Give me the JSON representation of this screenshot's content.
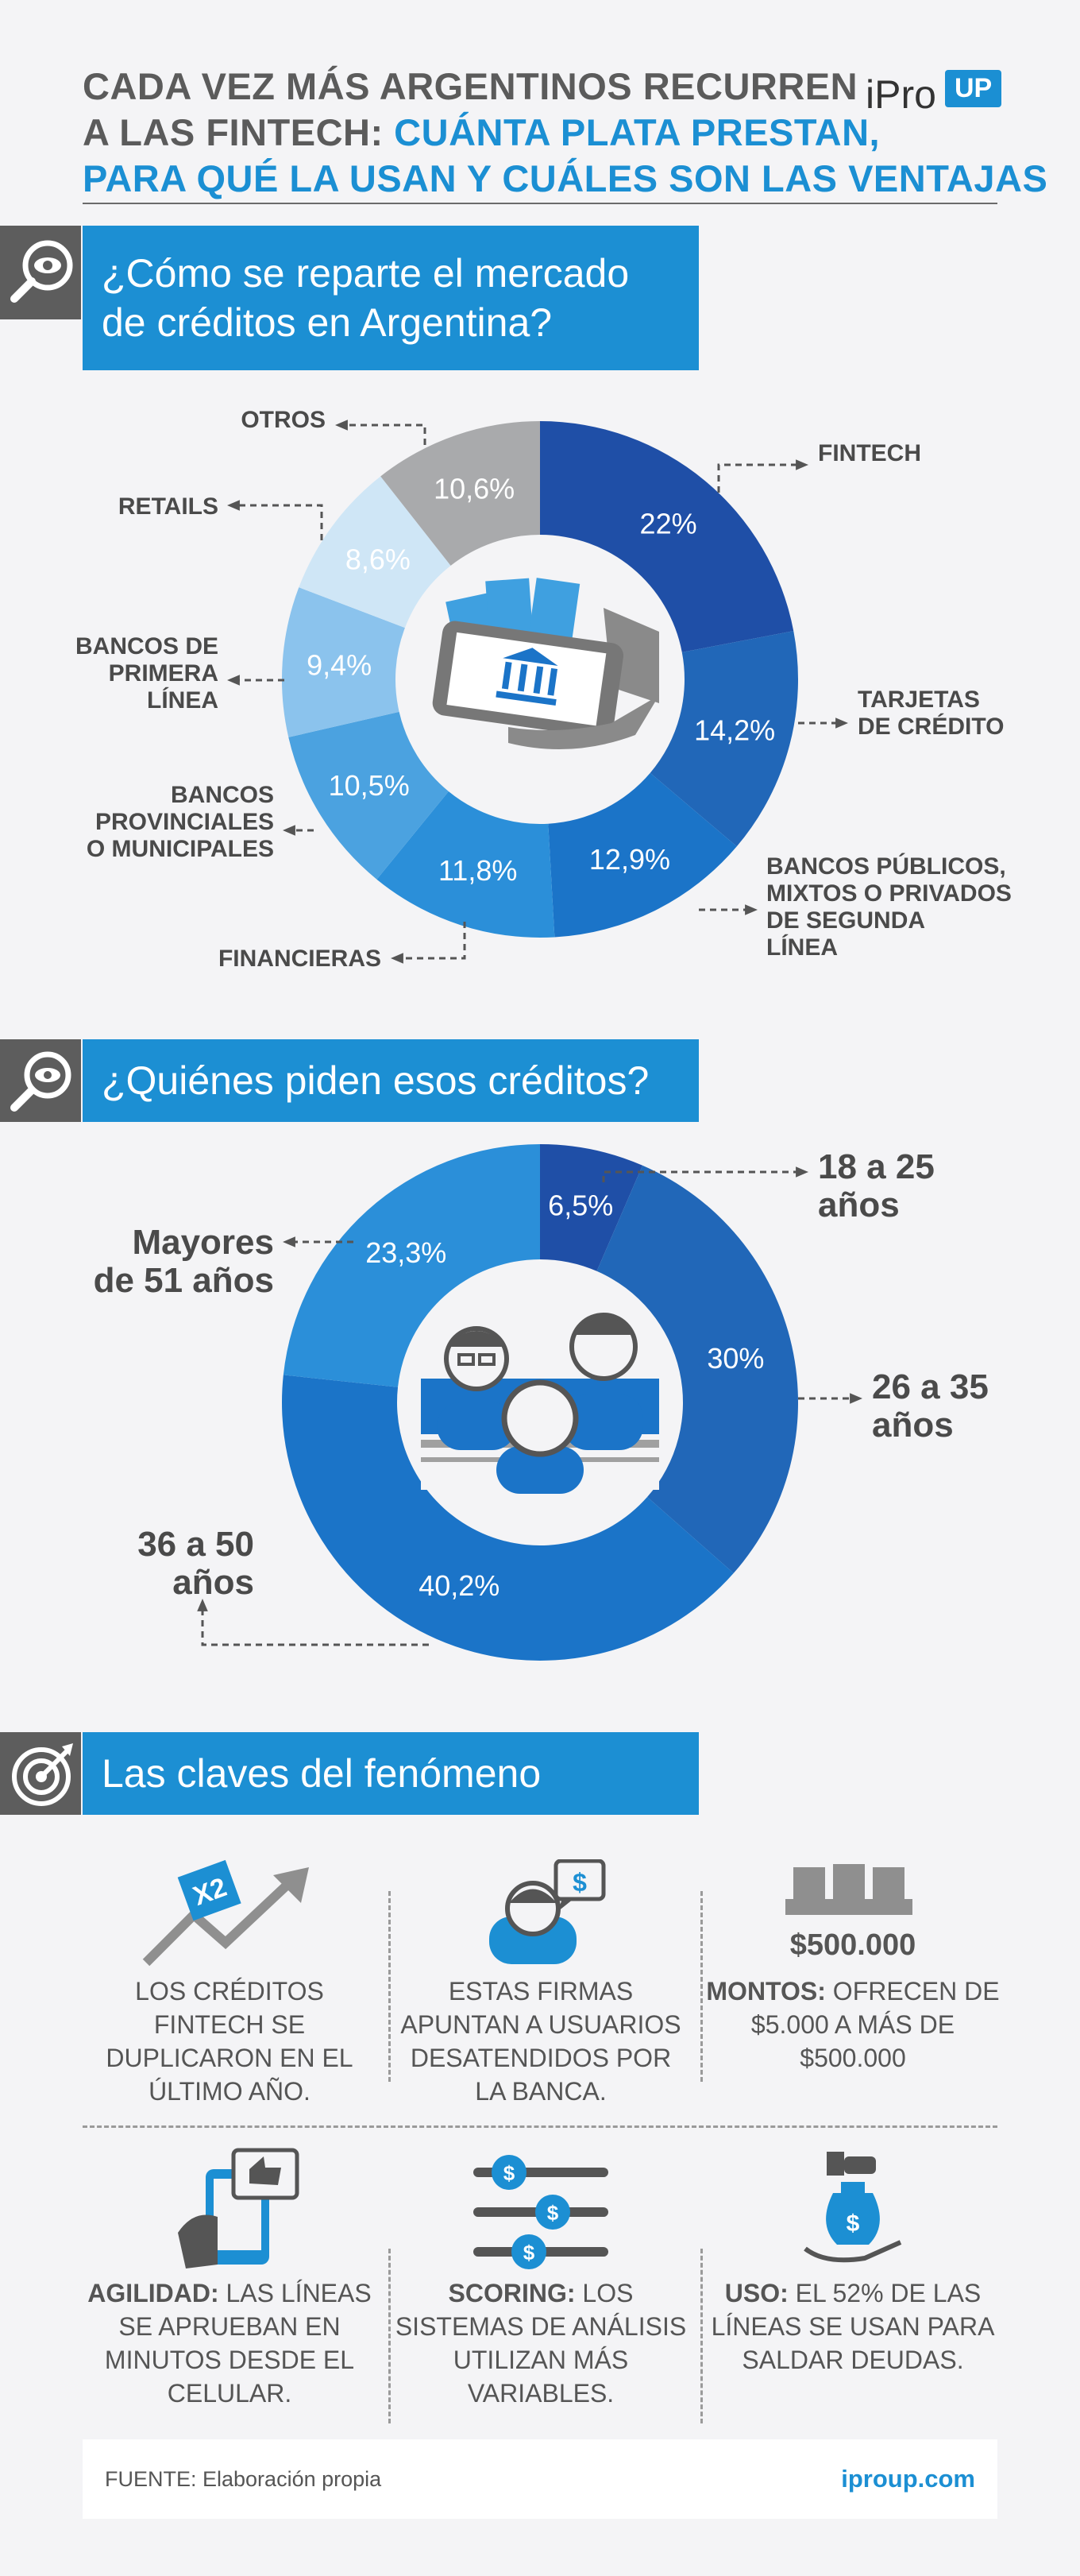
{
  "header": {
    "title_line1": "CADA VEZ MÁS ARGENTINOS RECURREN",
    "title_line2_gray": "A LAS FINTECH:",
    "title_line2_blue": " CUÁNTA PLATA PRESTAN,",
    "title_line3_blue": "PARA QUÉ LA USAN Y CUÁLES SON LAS VENTAJAS",
    "logo_text": "iPro",
    "logo_badge": "UP"
  },
  "section1": {
    "title_line1": "¿Cómo se reparte el mercado",
    "title_line2": "de créditos en Argentina?",
    "icon": "eye-magnifier-icon"
  },
  "section2": {
    "title": "¿Quiénes piden esos créditos?",
    "icon": "eye-magnifier-icon"
  },
  "section3": {
    "title": "Las claves del fenómeno",
    "icon": "target-icon"
  },
  "chart_data": [
    {
      "type": "pie",
      "title": "¿Cómo se reparte el mercado de créditos en Argentina?",
      "categories": [
        "FINTECH",
        "TARJETAS DE CRÉDITO",
        "BANCOS PÚBLICOS, MIXTOS O PRIVADOS DE SEGUNDA LÍNEA",
        "FINANCIERAS",
        "BANCOS PROVINCIALES O MUNICIPALES",
        "BANCOS DE PRIMERA LÍNEA",
        "RETAILS",
        "OTROS"
      ],
      "values": [
        22,
        14.2,
        12.9,
        11.8,
        10.5,
        9.4,
        8.6,
        10.6
      ],
      "value_labels": [
        "22%",
        "14,2%",
        "12,9%",
        "11,8%",
        "10,5%",
        "9,4%",
        "8,6%",
        "10,6%"
      ],
      "colors": [
        "#1f4fa7",
        "#2167b8",
        "#1b74c8",
        "#2b8fd9",
        "#4ba2e0",
        "#8bc3ed",
        "#cfe6f6",
        "#a9aaac"
      ],
      "label_lines": [
        [
          "FINTECH"
        ],
        [
          "TARJETAS",
          "DE CRÉDITO"
        ],
        [
          "BANCOS PÚBLICOS,",
          "MIXTOS O PRIVADOS",
          "DE SEGUNDA",
          "LÍNEA"
        ],
        [
          "FINANCIERAS"
        ],
        [
          "BANCOS",
          "PROVINCIALES",
          "O MUNICIPALES"
        ],
        [
          "BANCOS DE",
          "PRIMERA",
          "LÍNEA"
        ],
        [
          "RETAILS"
        ],
        [
          "OTROS"
        ]
      ]
    },
    {
      "type": "pie",
      "title": "¿Quiénes piden esos créditos?",
      "categories": [
        "18 a 25 años",
        "26 a 35 años",
        "36 a 50 años",
        "Mayores de 51 años"
      ],
      "values": [
        6.5,
        30,
        40.2,
        23.3
      ],
      "value_labels": [
        "6,5%",
        "30%",
        "40,2%",
        "23,3%"
      ],
      "colors": [
        "#1f4fa7",
        "#2167b8",
        "#1b74c8",
        "#2b8fd9"
      ],
      "label_lines": [
        [
          "18 a 25",
          "años"
        ],
        [
          "26 a 35",
          "años"
        ],
        [
          "36 a 50",
          "años"
        ],
        [
          "Mayores",
          "de 51 años"
        ]
      ]
    }
  ],
  "keys": [
    {
      "icon": "growth-arrow-x2-icon",
      "badge": "X2",
      "bold": "",
      "text": "LOS CRÉDITOS FINTECH SE DUPLICARON EN EL ÚLTIMO AÑO."
    },
    {
      "icon": "person-speech-dollar-icon",
      "badge": "$",
      "bold": "",
      "text": "ESTAS FIRMAS APUNTAN A USUARIOS DESATENDIDOS POR LA BANCA."
    },
    {
      "icon": "money-stack-icon",
      "badge": "$500.000",
      "bold": "MONTOS:",
      "text": " OFRECEN DE $5.000 A MÁS DE $500.000"
    },
    {
      "icon": "phone-thumbs-up-icon",
      "badge": "",
      "bold": "AGILIDAD:",
      "text": " LAS LÍNEAS SE APRUEBAN EN MINUTOS DESDE EL CELULAR."
    },
    {
      "icon": "scoring-sliders-icon",
      "badge": "$",
      "bold": "SCORING:",
      "text": " LOS SISTEMAS DE ANÁLISIS UTILIZAN MÁS VARIABLES."
    },
    {
      "icon": "money-bag-hand-icon",
      "badge": "$",
      "bold": "USO:",
      "text": " EL 52% DE LAS LÍNEAS SE USAN PARA SALDAR DEUDAS."
    }
  ],
  "footer": {
    "source": "FUENTE: Elaboración propia",
    "site": "iproup.com"
  },
  "colors": {
    "accent": "#1c8fd3",
    "header_gray": "#5d5d5d"
  }
}
